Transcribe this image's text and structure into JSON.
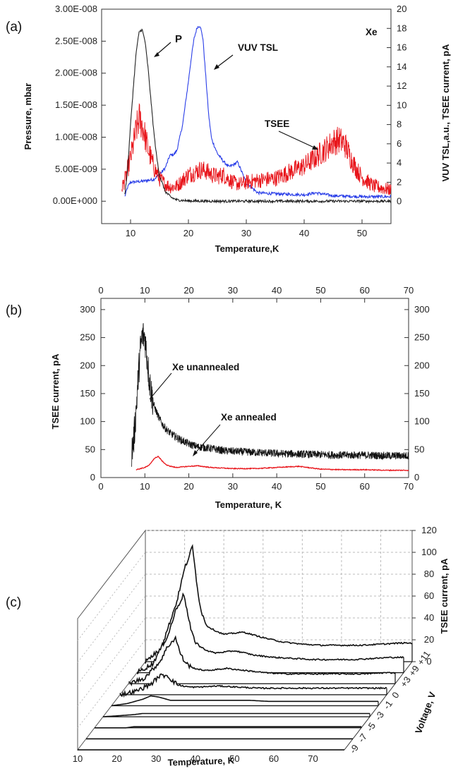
{
  "panel_labels": [
    "(a)",
    "(b)",
    "(c)"
  ],
  "chart_data": [
    {
      "type": "line",
      "panel": "(a)",
      "xlabel": "Temperature,K",
      "ylabel": "Pressure, mbar",
      "ylabel_right": "VUV TSL,a.u., TSEE current, pA",
      "xlim": [
        5,
        55
      ],
      "ylim": [
        -3.5e-09,
        3e-08
      ],
      "ylim_right": [
        -2.3,
        20
      ],
      "xticks": [
        "10",
        "20",
        "30",
        "40",
        "50"
      ],
      "yticks": [
        "0.00E+000",
        "5.00E-009",
        "1.00E-008",
        "1.50E-008",
        "2.00E-008",
        "2.50E-008",
        "3.00E-008"
      ],
      "yticks_right": [
        "0",
        "2",
        "4",
        "6",
        "8",
        "10",
        "12",
        "14",
        "16",
        "18",
        "20"
      ],
      "annotations": [
        "P",
        "VUV TSL",
        "TSEE",
        "Xe"
      ],
      "colors": {
        "P": "#222222",
        "VUV TSL": "#2a3ee8",
        "TSEE": "#e8141a"
      },
      "series": [
        {
          "axis": "left",
          "x": [
            9,
            9.5,
            10,
            10.5,
            11,
            11.5,
            12,
            12.5,
            13,
            13.5,
            14,
            14.5,
            15,
            16,
            17,
            18,
            20,
            25,
            30,
            40,
            55
          ],
          "values": [
            1e-09,
            5e-09,
            1.2e-08,
            1.8e-08,
            2.35e-08,
            2.65e-08,
            2.68e-08,
            2.5e-08,
            2.1e-08,
            1.6e-08,
            1.1e-08,
            7e-09,
            4e-09,
            1.5e-09,
            6e-10,
            2e-10,
            5e-11,
            0,
            0,
            0,
            0
          ]
        },
        {
          "axis": "right",
          "x": [
            9,
            9.5,
            10,
            12,
            14,
            15,
            16,
            16.8,
            17.5,
            18,
            19,
            20,
            20.5,
            21,
            21.5,
            22,
            22.5,
            23,
            23.5,
            24,
            25,
            26,
            27,
            28,
            28.5,
            29,
            30,
            32,
            35,
            40,
            42,
            45,
            50,
            55
          ],
          "values": [
            0.5,
            1.5,
            2.0,
            2.1,
            2.3,
            2.8,
            3.5,
            4.8,
            4.9,
            5.3,
            8,
            12.5,
            15,
            17,
            18.1,
            18.3,
            17,
            13,
            9,
            6.5,
            5,
            4.2,
            3.6,
            3.9,
            4.1,
            3.4,
            1.9,
            0.9,
            0.8,
            0.7,
            0.9,
            0.6,
            0.5,
            0.5
          ]
        },
        {
          "axis": "right",
          "x": [
            8.5,
            9,
            10,
            11,
            11.5,
            12,
            12.5,
            13,
            14,
            15,
            16,
            17,
            18,
            19,
            20,
            21,
            22,
            23,
            24,
            25,
            26,
            27,
            28,
            29,
            30,
            32,
            35,
            38,
            40,
            42,
            44,
            45,
            46,
            47,
            48,
            49,
            50,
            52,
            55
          ],
          "values": [
            1.5,
            2.2,
            4.5,
            7.5,
            8.6,
            8.0,
            6.8,
            5.5,
            3.6,
            2.4,
            1.8,
            1.5,
            1.6,
            2.2,
            2.8,
            3.0,
            3.3,
            3.2,
            2.8,
            2.6,
            2.8,
            2.3,
            1.9,
            1.8,
            2.0,
            2.2,
            2.4,
            3.2,
            3.7,
            4.6,
            5.6,
            6.2,
            6.4,
            6.0,
            4.6,
            3.4,
            2.5,
            1.6,
            1.2
          ]
        }
      ]
    },
    {
      "type": "line",
      "panel": "(b)",
      "xlabel": "Temperature, K",
      "ylabel": "TSEE current, pA",
      "xlim": [
        0,
        70
      ],
      "ylim": [
        0,
        320
      ],
      "xticks": [
        "0",
        "10",
        "20",
        "30",
        "40",
        "50",
        "60",
        "70"
      ],
      "yticks": [
        "0",
        "50",
        "100",
        "150",
        "200",
        "250",
        "300"
      ],
      "annotations": [
        "Xe unannealed",
        "Xe annealed"
      ],
      "colors": {
        "Xe unannealed": "#111111",
        "Xe annealed": "#e8141a"
      },
      "series": [
        {
          "x": [
            7,
            7.5,
            8,
            8.5,
            9,
            9.5,
            10,
            10.5,
            11,
            11.5,
            12,
            13,
            14,
            15,
            16,
            18,
            20,
            22,
            25,
            28,
            30,
            35,
            40,
            45,
            50,
            55,
            60,
            65,
            70
          ],
          "values": [
            45,
            70,
            120,
            180,
            230,
            255,
            250,
            215,
            175,
            150,
            130,
            110,
            95,
            85,
            78,
            68,
            60,
            55,
            52,
            48,
            47,
            45,
            43,
            42,
            41,
            40,
            40,
            39,
            39
          ]
        },
        {
          "x": [
            8,
            9,
            10,
            11,
            12,
            13,
            14,
            15,
            17,
            20,
            22,
            25,
            30,
            35,
            40,
            45,
            50,
            55,
            60,
            65,
            70
          ],
          "values": [
            14,
            16,
            18,
            22,
            33,
            38,
            29,
            22,
            18,
            20,
            21,
            18,
            16,
            16,
            18,
            20,
            15,
            14,
            14,
            13,
            13
          ]
        }
      ]
    },
    {
      "type": "line",
      "panel": "(c)",
      "xlabel": "Temperature, K",
      "ylabel": "TSEE current, pA",
      "zlabel": "Voltage, V",
      "xticks": [
        "10",
        "20",
        "30",
        "40",
        "50",
        "60",
        "70"
      ],
      "yticks": [
        "0",
        "20",
        "40",
        "60",
        "80",
        "100",
        "120"
      ],
      "zticks": [
        "-9",
        "-7",
        "-5",
        "-3",
        "-1",
        "0",
        "+3",
        "+9",
        "+11"
      ],
      "x": [
        10,
        14,
        18,
        20,
        22,
        23,
        24,
        25,
        26,
        28,
        30,
        35,
        40,
        45,
        50,
        55,
        60,
        65,
        70,
        75,
        78
      ],
      "series": [
        {
          "name": "-9",
          "values": [
            0,
            0,
            0,
            0,
            0,
            0,
            0,
            0,
            0,
            0,
            0,
            0,
            0,
            0,
            0,
            0,
            0,
            0,
            0,
            0,
            0
          ]
        },
        {
          "name": "-7",
          "values": [
            0,
            0,
            0,
            0,
            0,
            0,
            0,
            0,
            0,
            0,
            0,
            0,
            0,
            0,
            0,
            0,
            0,
            0,
            0,
            0,
            0
          ]
        },
        {
          "name": "-5",
          "values": [
            0,
            0,
            0,
            1,
            1,
            1,
            1,
            1,
            1,
            1,
            1,
            1,
            1,
            1,
            1,
            1,
            1,
            1,
            1,
            1,
            1
          ]
        },
        {
          "name": "-3",
          "values": [
            0,
            1,
            2,
            3,
            3,
            3,
            3,
            3,
            3,
            3,
            3,
            3,
            3,
            3,
            3,
            3,
            3,
            3,
            3,
            3,
            3
          ]
        },
        {
          "name": "-1",
          "values": [
            0,
            2,
            6,
            9,
            8,
            7,
            6,
            5,
            5,
            5,
            5,
            5,
            5,
            5,
            4,
            4,
            4,
            4,
            4,
            4,
            4
          ]
        },
        {
          "name": "0",
          "values": [
            0,
            3,
            10,
            17,
            18,
            14,
            11,
            9,
            8,
            7,
            7,
            8,
            7,
            6,
            6,
            6,
            6,
            6,
            6,
            6,
            6
          ]
        },
        {
          "name": "+3",
          "values": [
            0,
            5,
            20,
            34,
            42,
            30,
            22,
            18,
            15,
            13,
            12,
            14,
            12,
            10,
            9,
            9,
            9,
            9,
            9,
            10,
            10
          ]
        },
        {
          "name": "+9",
          "values": [
            0,
            8,
            35,
            58,
            72,
            52,
            36,
            28,
            24,
            20,
            18,
            20,
            16,
            14,
            13,
            12,
            12,
            12,
            13,
            14,
            14
          ]
        },
        {
          "name": "+11",
          "values": [
            0,
            12,
            55,
            85,
            105,
            75,
            50,
            38,
            32,
            28,
            25,
            27,
            22,
            18,
            16,
            15,
            15,
            15,
            16,
            17,
            17
          ]
        }
      ]
    }
  ]
}
